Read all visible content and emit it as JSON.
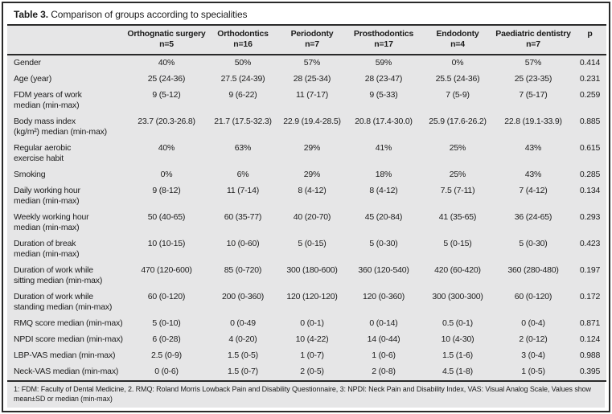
{
  "table": {
    "title_prefix": "Table 3.",
    "title_text": " Comparison of groups according to specialities",
    "columns": [
      {
        "name": "Orthognatic surgery",
        "n": "n=5"
      },
      {
        "name": "Orthodontics",
        "n": "n=16"
      },
      {
        "name": "Periodonty",
        "n": "n=7"
      },
      {
        "name": "Prosthodontics",
        "n": "n=17"
      },
      {
        "name": "Endodonty",
        "n": "n=4"
      },
      {
        "name": "Paediatric dentistry",
        "n": "n=7"
      }
    ],
    "p_header": "p",
    "rows": [
      {
        "label": "Gender",
        "values": [
          "40%",
          "50%",
          "57%",
          "59%",
          "0%",
          "57%"
        ],
        "p": "0.414"
      },
      {
        "label": "Age (year)",
        "values": [
          "25 (24-36)",
          "27.5 (24-39)",
          "28 (25-34)",
          "28 (23-47)",
          "25.5 (24-36)",
          "25 (23-35)"
        ],
        "p": "0.231"
      },
      {
        "label": "FDM years of work\nmedian (min-max)",
        "values": [
          "9 (5-12)",
          "9 (6-22)",
          "11 (7-17)",
          "9 (5-33)",
          "7 (5-9)",
          "7 (5-17)"
        ],
        "p": "0.259"
      },
      {
        "label": "Body mass index\n(kg/m²) median (min-max)",
        "values": [
          "23.7 (20.3-26.8)",
          "21.7 (17.5-32.3)",
          "22.9 (19.4-28.5)",
          "20.8 (17.4-30.0)",
          "25.9 (17.6-26.2)",
          "22.8 (19.1-33.9)"
        ],
        "p": "0.885"
      },
      {
        "label": "Regular aerobic\nexercise habit",
        "values": [
          "40%",
          "63%",
          "29%",
          "41%",
          "25%",
          "43%"
        ],
        "p": "0.615"
      },
      {
        "label": "Smoking",
        "values": [
          "0%",
          "6%",
          "29%",
          "18%",
          "25%",
          "43%"
        ],
        "p": "0.285"
      },
      {
        "label": "Daily working hour\nmedian (min-max)",
        "values": [
          "9 (8-12)",
          "11 (7-14)",
          "8 (4-12)",
          "8 (4-12)",
          "7.5 (7-11)",
          "7 (4-12)"
        ],
        "p": "0.134"
      },
      {
        "label": "Weekly working hour\nmedian (min-max)",
        "values": [
          "50 (40-65)",
          "60 (35-77)",
          "40 (20-70)",
          "45 (20-84)",
          "41 (35-65)",
          "36 (24-65)"
        ],
        "p": "0.293"
      },
      {
        "label": "Duration of break\nmedian (min-max)",
        "values": [
          "10 (10-15)",
          "10 (0-60)",
          "5 (0-15)",
          "5 (0-30)",
          "5 (0-15)",
          "5 (0-30)"
        ],
        "p": "0.423"
      },
      {
        "label": "Duration of work while\nsitting median (min-max)",
        "values": [
          "470 (120-600)",
          "85 (0-720)",
          "300 (180-600)",
          "360 (120-540)",
          "420 (60-420)",
          "360 (280-480)"
        ],
        "p": "0.197"
      },
      {
        "label": "Duration of work while\nstanding median (min-max)",
        "values": [
          "60 (0-120)",
          "200 (0-360)",
          "120 (120-120)",
          "120 (0-360)",
          "300 (300-300)",
          "60 (0-120)"
        ],
        "p": "0.172"
      },
      {
        "label": "RMQ score median (min-max)",
        "values": [
          "5 (0-10)",
          "0 (0-49",
          "0 (0-1)",
          "0 (0-14)",
          "0.5 (0-1)",
          "0 (0-4)"
        ],
        "p": "0.871"
      },
      {
        "label": "NPDI score median (min-max)",
        "values": [
          "6 (0-28)",
          "4 (0-20)",
          "10 (4-22)",
          "14 (0-44)",
          "10 (4-30)",
          "2 (0-12)"
        ],
        "p": "0.124"
      },
      {
        "label": "LBP-VAS median (min-max)",
        "values": [
          "2.5 (0-9)",
          "1.5 (0-5)",
          "1 (0-7)",
          "1 (0-6)",
          "1.5 (1-6)",
          "3 (0-4)"
        ],
        "p": "0.988"
      },
      {
        "label": "Neck-VAS median (min-max)",
        "values": [
          "0 (0-6)",
          "1.5 (0-7)",
          "2 (0-5)",
          "2 (0-8)",
          "4.5 (1-8)",
          "1 (0-5)"
        ],
        "p": "0.395"
      }
    ],
    "footnote": "1: FDM: Faculty of Dental Medicine, 2. RMQ: Roland Morris Lowback Pain and Disability Questionnaire, 3: NPDI: Neck Pain and Disability Index, VAS: Visual Analog Scale, Values show mean±SD or median (min-max)"
  }
}
